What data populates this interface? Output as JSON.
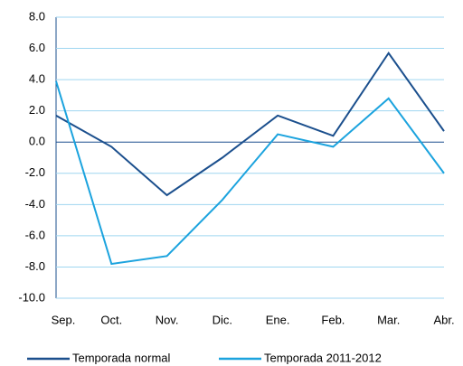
{
  "chart_data": {
    "type": "line",
    "categories": [
      "Sep.",
      "Oct.",
      "Nov.",
      "Dic.",
      "Ene.",
      "Feb.",
      "Mar.",
      "Abr."
    ],
    "series": [
      {
        "name": "Temporada normal",
        "color": "#1b4f8d",
        "values": [
          1.7,
          -0.3,
          -3.4,
          -1.0,
          1.7,
          0.4,
          5.7,
          0.7
        ]
      },
      {
        "name": "Temporada 2011-2012",
        "color": "#1ba3de",
        "values": [
          3.9,
          -7.8,
          -7.3,
          -3.7,
          0.5,
          -0.3,
          2.8,
          -2.0
        ]
      }
    ],
    "ylim": [
      -10,
      8
    ],
    "yticks": [
      {
        "value": -10,
        "label": "-10.0"
      },
      {
        "value": -8,
        "label": "-8.0"
      },
      {
        "value": -6,
        "label": "-6.0"
      },
      {
        "value": -4,
        "label": "-4.0"
      },
      {
        "value": -2,
        "label": "-2.0"
      },
      {
        "value": 0,
        "label": "0.0"
      },
      {
        "value": 2,
        "label": "2.0"
      },
      {
        "value": 4,
        "label": "4.0"
      },
      {
        "value": 6,
        "label": "6.0"
      },
      {
        "value": 8,
        "label": "8.0"
      }
    ],
    "grid": true,
    "legend": "bottom"
  }
}
